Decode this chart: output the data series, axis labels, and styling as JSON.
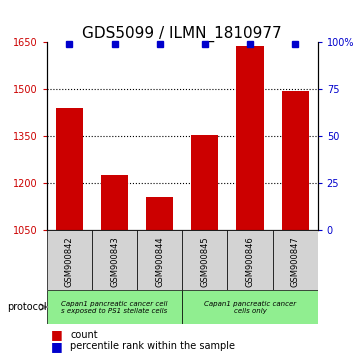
{
  "title": "GDS5099 / ILMN_1810977",
  "samples": [
    "GSM900842",
    "GSM900843",
    "GSM900844",
    "GSM900845",
    "GSM900846",
    "GSM900847"
  ],
  "counts": [
    1440,
    1225,
    1155,
    1355,
    1640,
    1495
  ],
  "percentiles": [
    99,
    99,
    99,
    99,
    99,
    99
  ],
  "ylim_left": [
    1050,
    1650
  ],
  "yticks_left": [
    1050,
    1200,
    1350,
    1500,
    1650
  ],
  "ylim_right": [
    0,
    100
  ],
  "yticks_right": [
    0,
    25,
    50,
    75,
    100
  ],
  "bar_color": "#cc0000",
  "percentile_color": "#0000cc",
  "bar_bottom": 1050,
  "dotted_lines": [
    1200,
    1350,
    1500
  ],
  "protocol_groups": [
    {
      "label": "Capan1 pancreatic cancer cell\ns exposed to PS1 stellate cells",
      "indices": [
        0,
        1,
        2
      ],
      "color": "#90ee90"
    },
    {
      "label": "Capan1 pancreatic cancer\ncells only",
      "indices": [
        3,
        4,
        5
      ],
      "color": "#90ee90"
    }
  ],
  "protocol_label": "protocol",
  "sample_bg_color": "#d3d3d3",
  "title_fontsize": 11,
  "axis_label_color_left": "#cc0000",
  "axis_label_color_right": "#0000cc",
  "legend_square_red": "#cc0000",
  "legend_square_blue": "#0000cc",
  "legend_text_count": "count",
  "legend_text_pct": "percentile rank within the sample"
}
